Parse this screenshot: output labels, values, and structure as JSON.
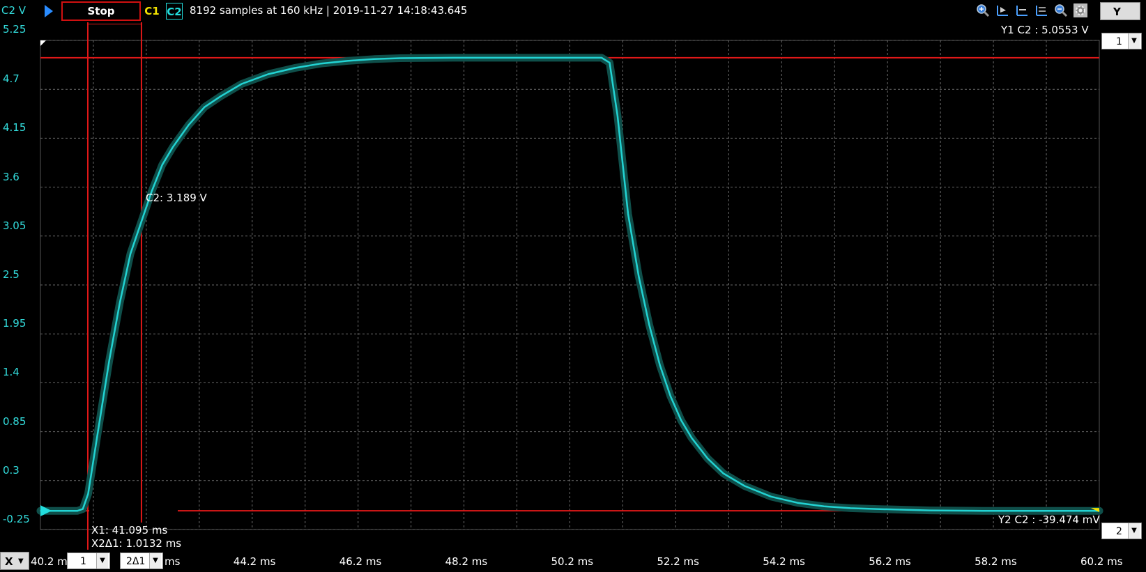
{
  "toolbar": {
    "y_axis_label": "C2 V",
    "stop_label": "Stop",
    "channel1": "C1",
    "channel2": "C2",
    "acquisition_info": "8192 samples at 160 kHz | 2019-11-27 14:18:43.645",
    "y_menu": "Y",
    "icons": [
      "zoom-in-icon",
      "cursor-arrow-icon",
      "cursor-horizontal-icon",
      "cursor-multi-icon",
      "zoom-out-icon",
      "settings-icon"
    ]
  },
  "side": {
    "y1_selector": "1",
    "y2_selector": "2"
  },
  "bottom": {
    "x_menu": "X",
    "x_start_label": "40.2 m",
    "x1_selector": "1",
    "x2_selector": "2Δ1",
    "x2_unit": "ms"
  },
  "cursors": {
    "y1_label": "Y1 C2 : 5.0553 V",
    "y2_label": "Y2 C2 : -39.474 mV",
    "x1_label": "X1: 41.095 ms",
    "x2_label": "X2Δ1: 1.0132 ms",
    "probe_label": "C2: 3.189 V",
    "y1_value": 5.0553,
    "y2_value": -0.039474,
    "x1_value": 41.095,
    "x2_value": 42.1082,
    "color": "#e01818"
  },
  "chart_data": {
    "type": "line",
    "title": "",
    "xlabel": "",
    "ylabel": "C2 V",
    "xlim": [
      40.2,
      60.2
    ],
    "ylim": [
      -0.25,
      5.25
    ],
    "x_ticks": [
      "44.2 ms",
      "46.2 ms",
      "48.2 ms",
      "50.2 ms",
      "52.2 ms",
      "54.2 ms",
      "56.2 ms",
      "58.2 ms",
      "60.2 ms"
    ],
    "x_tick_values": [
      44.2,
      46.2,
      48.2,
      50.2,
      52.2,
      54.2,
      56.2,
      58.2,
      60.2
    ],
    "y_ticks": [
      "5.25",
      "4.7",
      "4.15",
      "3.6",
      "3.05",
      "2.5",
      "1.95",
      "1.4",
      "0.85",
      "0.3",
      "-0.25"
    ],
    "y_tick_values": [
      5.25,
      4.7,
      4.15,
      3.6,
      3.05,
      2.5,
      1.95,
      1.4,
      0.85,
      0.3,
      -0.25
    ],
    "grid": true,
    "series": [
      {
        "name": "C2",
        "color": "#22d3d3",
        "x": [
          40.2,
          40.6,
          40.9,
          41.0,
          41.1,
          41.3,
          41.5,
          41.7,
          41.9,
          42.1,
          42.3,
          42.5,
          42.7,
          43.0,
          43.3,
          43.6,
          44.0,
          44.5,
          45.0,
          45.5,
          46.0,
          46.5,
          47.0,
          48.0,
          49.0,
          50.0,
          50.8,
          50.95,
          51.1,
          51.3,
          51.5,
          51.7,
          51.9,
          52.1,
          52.3,
          52.5,
          52.8,
          53.1,
          53.5,
          54.0,
          54.5,
          55.0,
          55.5,
          56.0,
          57.0,
          58.0,
          59.0,
          60.2
        ],
        "y": [
          -0.04,
          -0.04,
          -0.04,
          -0.02,
          0.15,
          0.9,
          1.65,
          2.3,
          2.85,
          3.2,
          3.55,
          3.85,
          4.05,
          4.3,
          4.5,
          4.62,
          4.76,
          4.87,
          4.94,
          4.99,
          5.02,
          5.04,
          5.05,
          5.055,
          5.055,
          5.055,
          5.055,
          5.0,
          4.4,
          3.3,
          2.6,
          2.05,
          1.6,
          1.25,
          0.98,
          0.78,
          0.55,
          0.38,
          0.24,
          0.12,
          0.05,
          0.01,
          -0.01,
          -0.02,
          -0.035,
          -0.04,
          -0.04,
          -0.04
        ]
      }
    ]
  }
}
